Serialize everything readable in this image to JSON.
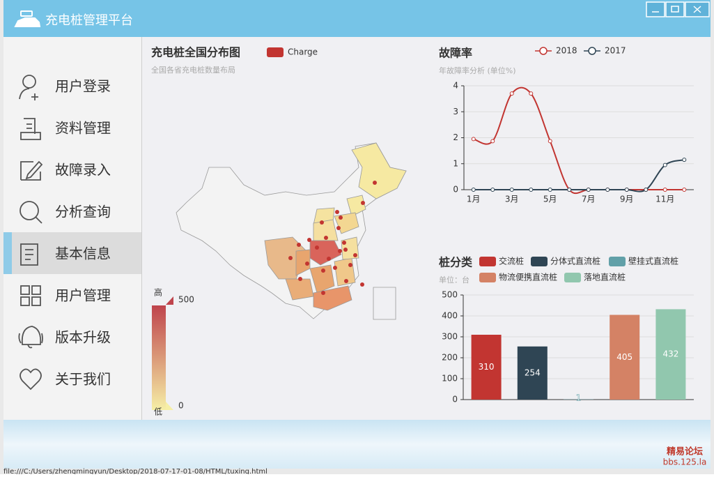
{
  "app": {
    "title": "充电桩管理平台",
    "watermark": [
      "精易论坛",
      "bbs.125.la"
    ],
    "status": "file:///C:/Users/zhengmingyun/Desktop/2018-07-17-01-08/HTML/tuxing.html"
  },
  "menu": {
    "items": [
      "用户登录",
      "资料管理",
      "故障录入",
      "分析查询",
      "基本信息",
      "用户管理",
      "版本升级",
      "关于我们"
    ],
    "active": 4
  },
  "chart_data": [
    {
      "type": "map",
      "title": "充电桩全国分布图",
      "subtitle": "全国各省充电桩数量布局",
      "series": [
        {
          "name": "Charge",
          "color": "#c23531"
        }
      ],
      "vlim": [
        0,
        500
      ],
      "vlim_labels": [
        "低",
        "高"
      ],
      "vcolors": [
        "#f6efa6",
        "#bf444c"
      ]
    },
    {
      "type": "line",
      "title": "故障率",
      "subtitle": "年故障率分析 (单位%)",
      "categories": [
        "1月",
        null,
        "3月",
        null,
        "5月",
        null,
        "7月",
        null,
        "9月",
        null,
        "11月",
        null
      ],
      "series": [
        {
          "name": "2018",
          "color": "#c23531",
          "values": [
            1.95,
            1.87,
            3.7,
            3.7,
            1.87,
            0,
            0,
            0,
            0,
            0,
            0,
            0
          ]
        },
        {
          "name": "2017",
          "color": "#2f4554",
          "values": [
            0,
            0,
            0,
            0,
            0,
            0,
            0,
            0,
            0,
            0,
            0.95,
            1.15
          ]
        }
      ],
      "ylim": [
        0,
        4
      ],
      "yticks": [
        0,
        1,
        2,
        3,
        4
      ],
      "grid": true
    },
    {
      "type": "bar",
      "title": "桩分类",
      "subtitle": "单位：台",
      "series": [
        {
          "name": "交流桩",
          "color": "#c23531",
          "values": [
            310
          ]
        },
        {
          "name": "分体式直流桩",
          "color": "#2f4554",
          "values": [
            254
          ]
        },
        {
          "name": "壁挂式直流桩",
          "color": "#61a0a8",
          "values": [
            1
          ]
        },
        {
          "name": "物流便携直流桩",
          "color": "#d48265",
          "values": [
            405
          ]
        },
        {
          "name": "落地直流桩",
          "color": "#91c7ae",
          "values": [
            432
          ]
        }
      ],
      "ylim": [
        0,
        500
      ],
      "yticks": [
        0,
        100,
        200,
        300,
        400,
        500
      ],
      "grid": true
    }
  ]
}
